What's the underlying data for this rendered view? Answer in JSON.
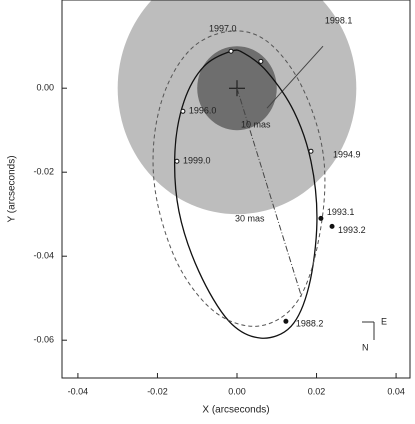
{
  "chart_data": {
    "type": "orbit",
    "x_label": "X (arcseconds)",
    "y_label": "Y (arcseconds)",
    "xlim": [
      -0.044,
      0.0435
    ],
    "ylim": [
      -0.069,
      0.021
    ],
    "xticks": [
      -0.04,
      -0.02,
      {
        "value": 0,
        "label": "0.00"
      },
      0.02,
      0.04
    ],
    "yticks": [
      {
        "value": 0,
        "label": "0.00"
      },
      -0.02,
      -0.04,
      -0.06
    ],
    "circles": [
      {
        "radius": 0.03,
        "label": "30 mas",
        "color": "#bdbdbd"
      },
      {
        "radius": 0.01,
        "label": "10 mas",
        "color": "#6e6e6e"
      }
    ],
    "series": [
      {
        "style": "solid",
        "color": "#111111",
        "x": [
          -0.0015,
          -0.0083,
          -0.0133,
          -0.0156,
          -0.0146,
          -0.0096,
          -0.002,
          0.006,
          0.0136,
          0.0181,
          0.0201,
          0.0186,
          0.0143,
          0.0075,
          0.0018
        ],
        "values": [
          0.0088,
          0.0052,
          -0.0031,
          -0.015,
          -0.0293,
          -0.0436,
          -0.0555,
          -0.0595,
          -0.0567,
          -0.0471,
          -0.0317,
          -0.0174,
          -0.0055,
          0.004,
          0.0083
        ]
      },
      {
        "style": "dashed",
        "color": "#555555",
        "x": [
          -0.0013,
          -0.0108,
          -0.0176,
          -0.0209,
          -0.0201,
          -0.0146,
          -0.0058,
          0.0043,
          0.0131,
          0.0186,
          0.0219,
          0.0211,
          0.0156,
          0.0075
        ],
        "values": [
          0.0136,
          0.01,
          0.0005,
          -0.0126,
          -0.0269,
          -0.0424,
          -0.0531,
          -0.0567,
          -0.0531,
          -0.0436,
          -0.0269,
          -0.0126,
          0.0017,
          0.0112
        ]
      }
    ],
    "epochs": {
      "labels": [
        "1997.0",
        "1998.1",
        "1996.0",
        "1999.0",
        "1994.9",
        "1993.1",
        "1993.2",
        "1988.2"
      ],
      "x": [
        -0.0015,
        0.006,
        -0.0136,
        -0.0151,
        0.0186,
        0.0211,
        0.0239,
        0.0123
      ],
      "values": [
        0.0088,
        0.0064,
        -0.0055,
        -0.0174,
        -0.015,
        -0.031,
        -0.0329,
        -0.0555
      ]
    },
    "compass": {
      "east": "E",
      "north": "N"
    }
  }
}
